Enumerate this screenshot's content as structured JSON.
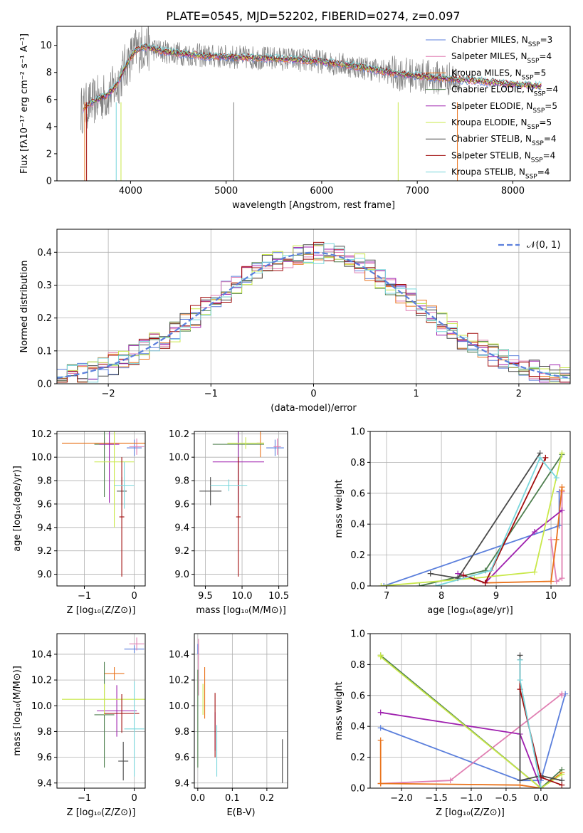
{
  "figure": {
    "title": "PLATE=0545, MJD=52202, FIBERID=0274, z=0.097"
  },
  "models": [
    {
      "name": "Chabrier MILES",
      "nssp": 3,
      "color": "#5b7fdc"
    },
    {
      "name": "Salpeter MILES",
      "nssp": 4,
      "color": "#e07fb2"
    },
    {
      "name": "Kroupa MILES",
      "nssp": 5,
      "color": "#e9731c"
    },
    {
      "name": "Chabrier ELODIE",
      "nssp": 4,
      "color": "#4f7f4f"
    },
    {
      "name": "Salpeter ELODIE",
      "nssp": 5,
      "color": "#9e1fae"
    },
    {
      "name": "Kroupa ELODIE",
      "nssp": 5,
      "color": "#c9e84a"
    },
    {
      "name": "Chabrier STELIB",
      "nssp": 4,
      "color": "#4a4a4a"
    },
    {
      "name": "Salpeter STELIB",
      "nssp": 4,
      "color": "#a10d0d"
    },
    {
      "name": "Kroupa STELIB",
      "nssp": 4,
      "color": "#78d6dc"
    }
  ],
  "chart_data": [
    {
      "id": "spectrum",
      "type": "line",
      "xlabel": "wavelength [Angstrom, rest frame]",
      "ylabel": "Flux [fλ10⁻¹⁷ erg cm⁻² s⁻¹ A⁻¹]",
      "xlim": [
        3230,
        8600
      ],
      "ylim": [
        0,
        11.4
      ],
      "xticks": [
        4000,
        5000,
        6000,
        7000,
        8000
      ],
      "yticks": [
        0,
        2,
        4,
        6,
        8,
        10
      ],
      "legend": "top-right",
      "continuum": {
        "x": [
          3480,
          3560,
          3650,
          3750,
          3850,
          3950,
          4050,
          4150,
          4300,
          4500,
          4800,
          5200,
          5600,
          6000,
          6400,
          6800,
          7200,
          7600,
          8000,
          8300
        ],
        "y": [
          5.2,
          5.6,
          6.0,
          6.3,
          7.0,
          8.5,
          9.6,
          9.9,
          9.6,
          9.4,
          9.2,
          9.1,
          9.0,
          8.8,
          8.4,
          7.9,
          7.6,
          7.4,
          7.1,
          7.0
        ]
      }
    },
    {
      "id": "residuals",
      "type": "histogram",
      "xlabel": "(data-model)/error",
      "ylabel": "Normed distribution",
      "xlim": [
        -2.5,
        2.5
      ],
      "ylim": [
        0,
        0.47
      ],
      "xticks": [
        -2,
        -1,
        0,
        1,
        2
      ],
      "yticks": [
        0.0,
        0.1,
        0.2,
        0.3,
        0.4
      ],
      "bin_width": 0.1,
      "gaussian_label": "𝒩(0, 1)",
      "legend": "top-right"
    },
    {
      "id": "age_vs_Z",
      "type": "errorbar",
      "xlabel": "Z [log₁₀(Z/Z⊙)]",
      "ylabel": "age  [log₁₀(age/yr)]",
      "xlim": [
        -1.55,
        0.22
      ],
      "ylim": [
        8.9,
        10.22
      ],
      "xticks": [
        -1,
        0
      ],
      "yticks": [
        9.0,
        9.2,
        9.4,
        9.6,
        9.8,
        10.0,
        10.2
      ],
      "points": [
        {
          "x": 0.0,
          "y": 10.08,
          "xerr": 0.15,
          "yerr": 0.07
        },
        {
          "x": 0.05,
          "y": 10.09,
          "xerr": 0.15,
          "yerr": 0.07
        },
        {
          "x": -0.6,
          "y": 10.12,
          "xerr": 0.85,
          "yerr": 0.05
        },
        {
          "x": -0.6,
          "y": 10.11,
          "xerr": 0.2,
          "yerr": 0.45
        },
        {
          "x": -0.5,
          "y": 10.11,
          "xerr": 0.2,
          "yerr": 0.5
        },
        {
          "x": -0.4,
          "y": 9.96,
          "xerr": 0.4,
          "yerr": 0.56
        },
        {
          "x": -0.25,
          "y": 9.71,
          "xerr": 0.1,
          "yerr": 0.12
        },
        {
          "x": -0.25,
          "y": 9.49,
          "xerr": 0.05,
          "yerr": 0.51
        },
        {
          "x": -0.2,
          "y": 9.76,
          "xerr": 0.2,
          "yerr": 0.2
        }
      ]
    },
    {
      "id": "age_vs_mass",
      "type": "errorbar",
      "xlabel": "mass [log₁₀(M/M⊙)]",
      "xlim": [
        9.35,
        10.62
      ],
      "ylim": [
        8.9,
        10.22
      ],
      "xticks": [
        9.5,
        10.0,
        10.5
      ],
      "yticks": [
        9.0,
        9.2,
        9.4,
        9.6,
        9.8,
        10.0,
        10.2
      ],
      "points": [
        {
          "x": 10.45,
          "y": 10.08,
          "xerr": 0.12,
          "yerr": 0.07
        },
        {
          "x": 10.48,
          "y": 10.09,
          "xerr": 0.05,
          "yerr": 0.07
        },
        {
          "x": 10.25,
          "y": 10.12,
          "xerr": 0.05,
          "yerr": 0.12
        },
        {
          "x": 9.95,
          "y": 10.11,
          "xerr": 0.35,
          "yerr": 0.5
        },
        {
          "x": 9.95,
          "y": 9.96,
          "xerr": 0.35,
          "yerr": 0.35
        },
        {
          "x": 10.05,
          "y": 10.12,
          "xerr": 0.25,
          "yerr": 0.05
        },
        {
          "x": 9.57,
          "y": 9.71,
          "xerr": 0.15,
          "yerr": 0.12
        },
        {
          "x": 9.95,
          "y": 9.49,
          "xerr": 0.03,
          "yerr": 0.51
        },
        {
          "x": 9.82,
          "y": 9.76,
          "xerr": 0.25,
          "yerr": 0.05
        }
      ]
    },
    {
      "id": "mass_weight_vs_age",
      "type": "line",
      "xlabel": "age  [log₁₀(age/yr)]",
      "ylabel": "mass weight",
      "xlim": [
        6.7,
        10.35
      ],
      "ylim": [
        0,
        1.0
      ],
      "xticks": [
        7,
        8,
        9,
        10
      ],
      "yticks": [
        0.0,
        0.2,
        0.4,
        0.6,
        0.8,
        1.0
      ],
      "series": [
        {
          "color_index": 0,
          "x": [
            6.95,
            10.15,
            10.15
          ],
          "y": [
            0.0,
            0.39,
            0.61
          ]
        },
        {
          "color_index": 1,
          "x": [
            10.0,
            10.1,
            10.2,
            10.2
          ],
          "y": [
            0.3,
            0.03,
            0.05,
            0.61
          ]
        },
        {
          "color_index": 2,
          "x": [
            8.8,
            10.0,
            10.1,
            10.2,
            10.2
          ],
          "y": [
            0.02,
            0.03,
            0.3,
            0.64,
            0.62
          ]
        },
        {
          "color_index": 3,
          "x": [
            7.6,
            8.8,
            10.2
          ],
          "y": [
            0.0,
            0.1,
            0.85
          ]
        },
        {
          "color_index": 4,
          "x": [
            8.3,
            8.8,
            9.7,
            10.2
          ],
          "y": [
            0.08,
            0.02,
            0.35,
            0.49
          ]
        },
        {
          "color_index": 5,
          "x": [
            6.9,
            8.6,
            9.7,
            10.2
          ],
          "y": [
            0.0,
            0.05,
            0.09,
            0.86
          ]
        },
        {
          "color_index": 6,
          "x": [
            7.8,
            8.3,
            9.8
          ],
          "y": [
            0.08,
            0.05,
            0.86
          ]
        },
        {
          "color_index": 7,
          "x": [
            8.4,
            8.8,
            9.9
          ],
          "y": [
            0.07,
            0.02,
            0.83
          ]
        },
        {
          "color_index": 8,
          "x": [
            7.9,
            8.9,
            9.8,
            10.1
          ],
          "y": [
            0.0,
            0.1,
            0.83,
            0.7
          ]
        }
      ]
    },
    {
      "id": "mass_vs_Z",
      "type": "errorbar",
      "xlabel": "Z [log₁₀(Z/Z⊙)]",
      "ylabel": "mass [log₁₀(M/M⊙)]",
      "xlim": [
        -1.55,
        0.22
      ],
      "ylim": [
        9.36,
        10.56
      ],
      "xticks": [
        -1,
        0
      ],
      "yticks": [
        9.4,
        9.6,
        9.8,
        10.0,
        10.2,
        10.4
      ],
      "points": [
        {
          "x": 0.0,
          "y": 10.44,
          "xerr": 0.2,
          "yerr": 0.03
        },
        {
          "x": 0.05,
          "y": 10.48,
          "xerr": 0.15,
          "yerr": 0.05
        },
        {
          "x": -0.4,
          "y": 10.25,
          "xerr": 0.2,
          "yerr": 0.05
        },
        {
          "x": -0.6,
          "y": 9.93,
          "xerr": 0.2,
          "yerr": 0.41
        },
        {
          "x": -0.35,
          "y": 9.96,
          "xerr": 0.4,
          "yerr": 0.2
        },
        {
          "x": -0.6,
          "y": 10.05,
          "xerr": 0.85,
          "yerr": 0.12
        },
        {
          "x": -0.22,
          "y": 9.57,
          "xerr": 0.1,
          "yerr": 0.15
        },
        {
          "x": -0.25,
          "y": 9.94,
          "xerr": 0.35,
          "yerr": 0.15
        },
        {
          "x": 0.0,
          "y": 9.82,
          "xerr": 0.2,
          "yerr": 0.37
        }
      ]
    },
    {
      "id": "mass_vs_EBV",
      "type": "errorbar",
      "xlabel": "E(B-V)",
      "xlim": [
        -0.01,
        0.26
      ],
      "ylim": [
        9.36,
        10.56
      ],
      "xticks": [
        0.0,
        0.1,
        0.2
      ],
      "yticks": [
        9.4,
        9.6,
        9.8,
        10.0,
        10.2,
        10.4
      ],
      "points": [
        {
          "x": 0.0,
          "y": 10.44,
          "xerr": 0.0,
          "yerr": 0.04
        },
        {
          "x": 0.002,
          "y": 10.3,
          "xerr": 0.0,
          "yerr": 0.22
        },
        {
          "x": 0.02,
          "y": 10.1,
          "xerr": 0.0,
          "yerr": 0.2
        },
        {
          "x": 0.0,
          "y": 9.9,
          "xerr": 0.0,
          "yerr": 0.38
        },
        {
          "x": 0.05,
          "y": 9.8,
          "xerr": 0.0,
          "yerr": 0.15
        },
        {
          "x": 0.015,
          "y": 10.05,
          "xerr": 0.0,
          "yerr": 0.12
        },
        {
          "x": 0.245,
          "y": 9.57,
          "xerr": 0.0,
          "yerr": 0.17
        },
        {
          "x": 0.05,
          "y": 9.85,
          "xerr": 0.0,
          "yerr": 0.25
        },
        {
          "x": 0.055,
          "y": 9.65,
          "xerr": 0.0,
          "yerr": 0.2
        }
      ]
    },
    {
      "id": "mass_weight_vs_Z",
      "type": "line",
      "xlabel": "Z [log₁₀(Z/Z⊙)]",
      "ylabel": "mass weight",
      "xlim": [
        -2.45,
        0.42
      ],
      "ylim": [
        0,
        1.0
      ],
      "xticks": [
        -2.0,
        -1.5,
        -1.0,
        -0.5,
        0.0
      ],
      "yticks": [
        0.0,
        0.2,
        0.4,
        0.6,
        0.8,
        1.0
      ],
      "series": [
        {
          "color_index": 0,
          "x": [
            -2.3,
            -0.3,
            0.0,
            0.35
          ],
          "y": [
            0.39,
            0.05,
            0.05,
            0.61
          ]
        },
        {
          "color_index": 1,
          "x": [
            -2.3,
            -1.3,
            0.3,
            0.3
          ],
          "y": [
            0.03,
            0.05,
            0.61,
            0.6
          ]
        },
        {
          "color_index": 2,
          "x": [
            -2.3,
            -2.3,
            -2.3,
            -0.3,
            0.0,
            0.3
          ],
          "y": [
            0.31,
            0.03,
            0.03,
            0.02,
            0.0,
            0.1
          ]
        },
        {
          "color_index": 3,
          "x": [
            -2.3,
            0.0,
            0.3
          ],
          "y": [
            0.86,
            0.0,
            0.12
          ]
        },
        {
          "color_index": 4,
          "x": [
            -2.3,
            -0.3,
            0.0
          ],
          "y": [
            0.49,
            0.35,
            0.0
          ]
        },
        {
          "color_index": 5,
          "x": [
            -2.3,
            -2.3,
            0.0,
            0.3
          ],
          "y": [
            0.86,
            0.85,
            0.0,
            0.09
          ]
        },
        {
          "color_index": 6,
          "x": [
            -0.3,
            -0.3,
            0.0,
            0.3
          ],
          "y": [
            0.86,
            0.05,
            0.08,
            0.05
          ]
        },
        {
          "color_index": 7,
          "x": [
            -0.3,
            -0.3,
            0.0,
            0.3
          ],
          "y": [
            0.83,
            0.64,
            0.07,
            0.02
          ]
        },
        {
          "color_index": 8,
          "x": [
            -0.3,
            -0.3,
            0.0
          ],
          "y": [
            0.83,
            0.7,
            0.0
          ]
        }
      ]
    }
  ]
}
